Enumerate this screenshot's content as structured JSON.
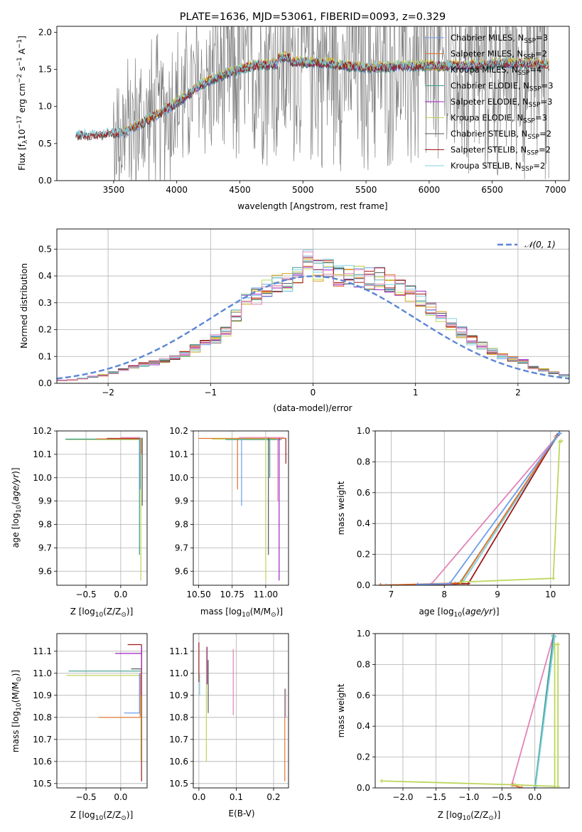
{
  "colors": {
    "chabrier_miles": "#6d9eeb",
    "salpeter_miles": "#e6732c",
    "kroupa_miles": "#d4a017",
    "chabrier_elodie": "#3c9c8c",
    "salpeter_elodie": "#a020c0",
    "kroupa_elodie": "#bcd65a",
    "chabrier_stelib": "#555555",
    "salpeter_stelib": "#a01818",
    "kroupa_stelib": "#7fd0e0",
    "normal": "#5b86d6",
    "pink": "#e283b6",
    "grid": "#b0b0b0",
    "gray_spectrum": "#808080"
  },
  "chart_data": [
    {
      "id": "spectrum",
      "type": "line",
      "title": "PLATE=1636, MJD=53061, FIBERID=0093, z=0.329",
      "xlabel": "wavelength [Angstrom, rest frame]",
      "ylabel_main": "Flux [f",
      "ylabel_sub": "λ",
      "ylabel_rest": "10",
      "ylabel_exp1": "−17",
      "ylabel_mid": " erg cm",
      "ylabel_exp2": "−2",
      "ylabel_mid2": " s",
      "ylabel_exp3": "−1",
      "ylabel_mid3": " A",
      "ylabel_exp4": "−1",
      "ylabel_end": "]",
      "xlim": [
        3050,
        7110
      ],
      "ylim": [
        0,
        2.08
      ],
      "xticks": [
        3500,
        4000,
        4500,
        5000,
        5500,
        6000,
        6500,
        7000
      ],
      "yticks": [
        0.0,
        0.5,
        1.0,
        1.5,
        2.0
      ],
      "grid": false,
      "legend_position": "top-right",
      "legend": [
        {
          "name": "Chabrier MILES",
          "nssp": "3",
          "color_key": "chabrier_miles"
        },
        {
          "name": "Salpeter MILES",
          "nssp": "2",
          "color_key": "salpeter_miles"
        },
        {
          "name": "Kroupa MILES",
          "nssp": "4",
          "color_key": "kroupa_miles"
        },
        {
          "name": "Chabrier ELODIE",
          "nssp": "3",
          "color_key": "chabrier_elodie"
        },
        {
          "name": "Salpeter ELODIE",
          "nssp": "3",
          "color_key": "salpeter_elodie"
        },
        {
          "name": "Kroupa ELODIE",
          "nssp": "3",
          "color_key": "kroupa_elodie"
        },
        {
          "name": "Chabrier STELIB",
          "nssp": "2",
          "color_key": "chabrier_stelib"
        },
        {
          "name": "Salpeter STELIB",
          "nssp": "2",
          "color_key": "salpeter_stelib"
        },
        {
          "name": "Kroupa STELIB",
          "nssp": "2",
          "color_key": "kroupa_stelib"
        }
      ],
      "legend_prefix": "N",
      "legend_sub": "SSP",
      "continuum": [
        [
          3200,
          0.62
        ],
        [
          3400,
          0.62
        ],
        [
          3600,
          0.66
        ],
        [
          3800,
          0.85
        ],
        [
          4000,
          1.05
        ],
        [
          4200,
          1.3
        ],
        [
          4400,
          1.45
        ],
        [
          4600,
          1.55
        ],
        [
          4800,
          1.58
        ],
        [
          5000,
          1.6
        ],
        [
          5200,
          1.58
        ],
        [
          5500,
          1.52
        ],
        [
          5800,
          1.55
        ],
        [
          6000,
          1.55
        ],
        [
          6300,
          1.55
        ],
        [
          6600,
          1.58
        ],
        [
          6800,
          1.58
        ],
        [
          6950,
          1.56
        ]
      ],
      "spectrum_range": [
        3200,
        6950
      ],
      "models_range_miles": [
        3540,
        6950
      ],
      "models_range_elodie": [
        3900,
        6800
      ],
      "models_range_stelib": [
        3200,
        6950
      ]
    },
    {
      "id": "residuals",
      "type": "histogram",
      "xlabel": "(data-model)/error",
      "ylabel": "Normed distribution",
      "xlim": [
        -2.5,
        2.5
      ],
      "ylim": [
        0,
        0.575
      ],
      "xticks": [
        -2,
        -1,
        0,
        1,
        2
      ],
      "yticks": [
        0.0,
        0.1,
        0.2,
        0.3,
        0.4,
        0.5
      ],
      "grid": true,
      "legend_position": "top-right",
      "normal_label": "𝒩(0, 1)",
      "bin_width": 0.1,
      "bin_start": -2.5,
      "base_hist": [
        0.01,
        0.012,
        0.018,
        0.025,
        0.03,
        0.04,
        0.05,
        0.06,
        0.07,
        0.075,
        0.085,
        0.095,
        0.11,
        0.13,
        0.15,
        0.165,
        0.19,
        0.25,
        0.31,
        0.33,
        0.35,
        0.37,
        0.38,
        0.4,
        0.46,
        0.42,
        0.44,
        0.4,
        0.41,
        0.4,
        0.39,
        0.39,
        0.38,
        0.36,
        0.34,
        0.31,
        0.28,
        0.25,
        0.22,
        0.19,
        0.16,
        0.14,
        0.12,
        0.1,
        0.09,
        0.08,
        0.06,
        0.05,
        0.04,
        0.03
      ],
      "n_models": 9
    },
    {
      "id": "age_vs_Z",
      "type": "scatter",
      "xlabel_pre": "Z [log",
      "xlabel_sub": "10",
      "xlabel_post": "(Z/Z",
      "xlabel_sun": "⊙",
      "xlabel_end": ")]",
      "ylabel_pre": "age  [log",
      "ylabel_sub": "10",
      "ylabel_post": "(age/yr)]",
      "xlim": [
        -0.92,
        0.38
      ],
      "ylim": [
        9.54,
        10.2
      ],
      "xticks": [
        -0.5,
        0.0
      ],
      "xtick_labels": [
        "−0.5",
        "0.0"
      ],
      "yticks": [
        9.6,
        9.7,
        9.8,
        9.9,
        10.0,
        10.1,
        10.2
      ],
      "grid": true,
      "vlines": [
        [
          0.29,
          9.56,
          10.17,
          "kroupa_elodie"
        ],
        [
          0.27,
          9.67,
          10.17,
          "chabrier_elodie"
        ],
        [
          0.31,
          9.88,
          10.17,
          "chabrier_stelib"
        ],
        [
          0.3,
          10.1,
          10.17,
          "salpeter_miles"
        ],
        [
          0.28,
          9.95,
          10.17,
          "chabrier_miles"
        ]
      ],
      "hlines": [
        [
          -0.78,
          0.31,
          10.163,
          "kroupa_elodie"
        ],
        [
          -0.8,
          0.3,
          10.165,
          "chabrier_elodie"
        ],
        [
          -0.2,
          0.31,
          10.168,
          "salpeter_stelib"
        ],
        [
          0.0,
          0.28,
          10.172,
          "pink"
        ],
        [
          -0.35,
          0.3,
          10.166,
          "salpeter_miles"
        ]
      ]
    },
    {
      "id": "age_vs_mass",
      "type": "scatter",
      "xlabel_pre": "mass [log",
      "xlabel_sub": "10",
      "xlabel_post": "(M/M",
      "xlabel_sun": "⊙",
      "xlabel_end": ")]",
      "xlim": [
        10.46,
        11.17
      ],
      "ylim": [
        9.54,
        10.2
      ],
      "xticks": [
        10.5,
        10.75,
        11.0
      ],
      "xtick_labels": [
        "10.50",
        "10.75",
        "11.00"
      ],
      "yticks": [
        9.6,
        9.7,
        9.8,
        9.9,
        10.0,
        10.1,
        10.2
      ],
      "grid": true,
      "vlines": [
        [
          10.79,
          9.95,
          10.17,
          "salpeter_miles"
        ],
        [
          10.82,
          9.88,
          10.17,
          "chabrier_miles"
        ],
        [
          11.0,
          9.56,
          10.17,
          "kroupa_elodie"
        ],
        [
          11.02,
          9.67,
          10.17,
          "chabrier_stelib"
        ],
        [
          11.03,
          10.0,
          10.17,
          "chabrier_elodie"
        ],
        [
          11.09,
          9.9,
          10.17,
          "pink"
        ],
        [
          11.1,
          9.56,
          10.17,
          "salpeter_elodie"
        ],
        [
          11.15,
          10.06,
          10.17,
          "salpeter_stelib"
        ]
      ],
      "hlines": [
        [
          10.5,
          11.15,
          10.168,
          "salpeter_miles"
        ],
        [
          10.6,
          11.1,
          10.165,
          "kroupa_elodie"
        ],
        [
          10.7,
          11.12,
          10.163,
          "chabrier_elodie"
        ],
        [
          10.8,
          11.14,
          10.172,
          "pink"
        ]
      ]
    },
    {
      "id": "massweight_vs_age",
      "type": "line",
      "xlabel_pre": "age  [log",
      "xlabel_sub": "10",
      "xlabel_post": "(age/yr)]",
      "ylabel": "mass weight",
      "xlim": [
        6.7,
        10.35
      ],
      "ylim": [
        0,
        1.0
      ],
      "xticks": [
        7,
        8,
        9,
        10
      ],
      "yticks": [
        0.0,
        0.2,
        0.4,
        0.6,
        0.8,
        1.0
      ],
      "grid": true,
      "series": [
        {
          "color_key": "pink",
          "x": [
            6.8,
            7.75,
            10.17
          ],
          "y": [
            0.0,
            0.005,
            0.985
          ]
        },
        {
          "color_key": "chabrier_elodie",
          "x": [
            6.8,
            8.2,
            8.3,
            10.17
          ],
          "y": [
            0.0,
            0.01,
            0.02,
            0.985
          ]
        },
        {
          "color_key": "kroupa_stelib",
          "x": [
            6.9,
            8.25,
            8.35,
            10.16
          ],
          "y": [
            0.0,
            0.01,
            0.02,
            0.98
          ]
        },
        {
          "color_key": "salpeter_stelib",
          "x": [
            6.8,
            8.45,
            10.12
          ],
          "y": [
            0.0,
            0.01,
            0.97
          ]
        },
        {
          "color_key": "salpeter_miles",
          "x": [
            6.8,
            8.3,
            10.1
          ],
          "y": [
            0.0,
            0.015,
            0.96
          ]
        },
        {
          "color_key": "kroupa_elodie",
          "x": [
            8.3,
            10.05,
            10.17,
            10.2
          ],
          "y": [
            0.02,
            0.045,
            0.93,
            0.935
          ]
        },
        {
          "color_key": "chabrier_miles",
          "x": [
            7.5,
            8.1,
            10.16
          ],
          "y": [
            0.005,
            0.01,
            0.985
          ]
        }
      ]
    },
    {
      "id": "mass_vs_Z",
      "type": "scatter",
      "ylabel_pre": "mass [log",
      "ylabel_sub": "10",
      "ylabel_post": "(M/M",
      "ylabel_sun": "⊙",
      "ylabel_end": ")]",
      "xlabel_pre": "Z [log",
      "xlabel_sub": "10",
      "xlabel_post": "(Z/Z",
      "xlabel_sun": "⊙",
      "xlabel_end": ")]",
      "xlim": [
        -0.92,
        0.38
      ],
      "ylim": [
        10.48,
        11.18
      ],
      "xticks": [
        -0.5,
        0.0
      ],
      "xtick_labels": [
        "−0.5",
        "0.0"
      ],
      "yticks": [
        10.5,
        10.6,
        10.7,
        10.8,
        10.9,
        11.0,
        11.1
      ],
      "grid": true,
      "vlines": [
        [
          0.3,
          10.51,
          11.13,
          "salpeter_stelib"
        ],
        [
          0.29,
          10.6,
          11.02,
          "kroupa_elodie"
        ],
        [
          0.28,
          10.8,
          11.0,
          "salpeter_miles"
        ],
        [
          0.27,
          10.82,
          11.0,
          "chabrier_miles"
        ],
        [
          0.3,
          10.9,
          11.12,
          "salpeter_elodie"
        ]
      ],
      "hlines": [
        [
          -0.78,
          0.3,
          10.99,
          "kroupa_elodie"
        ],
        [
          -0.75,
          0.3,
          11.01,
          "chabrier_elodie"
        ],
        [
          -0.32,
          0.3,
          10.8,
          "salpeter_miles"
        ],
        [
          0.05,
          0.3,
          10.82,
          "chabrier_miles"
        ],
        [
          -0.08,
          0.3,
          11.09,
          "salpeter_elodie"
        ],
        [
          0.1,
          0.3,
          11.13,
          "salpeter_stelib"
        ],
        [
          0.15,
          0.3,
          11.02,
          "chabrier_stelib"
        ]
      ]
    },
    {
      "id": "mass_vs_ebv",
      "type": "scatter",
      "xlabel": "E(B-V)",
      "xlim": [
        -0.015,
        0.24
      ],
      "ylim": [
        10.48,
        11.18
      ],
      "xticks": [
        0.0,
        0.1,
        0.2
      ],
      "xtick_labels": [
        "0.0",
        "0.1",
        "0.2"
      ],
      "yticks": [
        10.5,
        10.6,
        10.7,
        10.8,
        10.9,
        11.0,
        11.1
      ],
      "grid": true,
      "vlines": [
        [
          0.0,
          10.96,
          11.14,
          "salpeter_stelib"
        ],
        [
          0.002,
          10.9,
          11.0,
          "kroupa_stelib"
        ],
        [
          0.02,
          10.6,
          11.12,
          "kroupa_elodie"
        ],
        [
          0.022,
          10.95,
          11.12,
          "salpeter_elodie"
        ],
        [
          0.025,
          10.82,
          11.06,
          "chabrier_stelib"
        ],
        [
          0.092,
          10.81,
          11.11,
          "pink"
        ],
        [
          0.23,
          10.51,
          10.93,
          "salpeter_miles"
        ],
        [
          0.232,
          10.8,
          10.93,
          "chabrier_miles"
        ]
      ],
      "hlines": []
    },
    {
      "id": "massweight_vs_Z",
      "type": "line",
      "xlabel_pre": "Z [log",
      "xlabel_sub": "10",
      "xlabel_post": "(Z/Z",
      "xlabel_sun": "⊙",
      "xlabel_end": ")]",
      "ylabel": "mass weight",
      "xlim": [
        -2.42,
        0.52
      ],
      "ylim": [
        0,
        1.0
      ],
      "xticks": [
        -2.0,
        -1.5,
        -1.0,
        -0.5,
        0.0
      ],
      "xtick_labels": [
        "−2.0",
        "−1.5",
        "−1.0",
        "−0.5",
        "0.0"
      ],
      "yticks": [
        0.0,
        0.2,
        0.4,
        0.6,
        0.8,
        1.0
      ],
      "grid": true,
      "series": [
        {
          "color_key": "pink",
          "x": [
            -0.2,
            -0.35,
            0.28
          ],
          "y": [
            0.0,
            0.02,
            0.985
          ]
        },
        {
          "color_key": "chabrier_elodie",
          "x": [
            0.0,
            0.28
          ],
          "y": [
            0.0,
            0.985
          ]
        },
        {
          "color_key": "kroupa_stelib",
          "x": [
            0.0,
            0.01,
            0.3
          ],
          "y": [
            0.0,
            0.01,
            0.98
          ]
        },
        {
          "color_key": "salpeter_miles",
          "x": [
            -0.33,
            -0.2
          ],
          "y": [
            0.02,
            0.0
          ]
        },
        {
          "color_key": "kroupa_elodie",
          "x": [
            -2.32,
            -0.3,
            0.3,
            0.3,
            0.35,
            0.35
          ],
          "y": [
            0.045,
            0.02,
            0.01,
            0.93,
            0.93,
            0.01
          ]
        }
      ]
    }
  ]
}
